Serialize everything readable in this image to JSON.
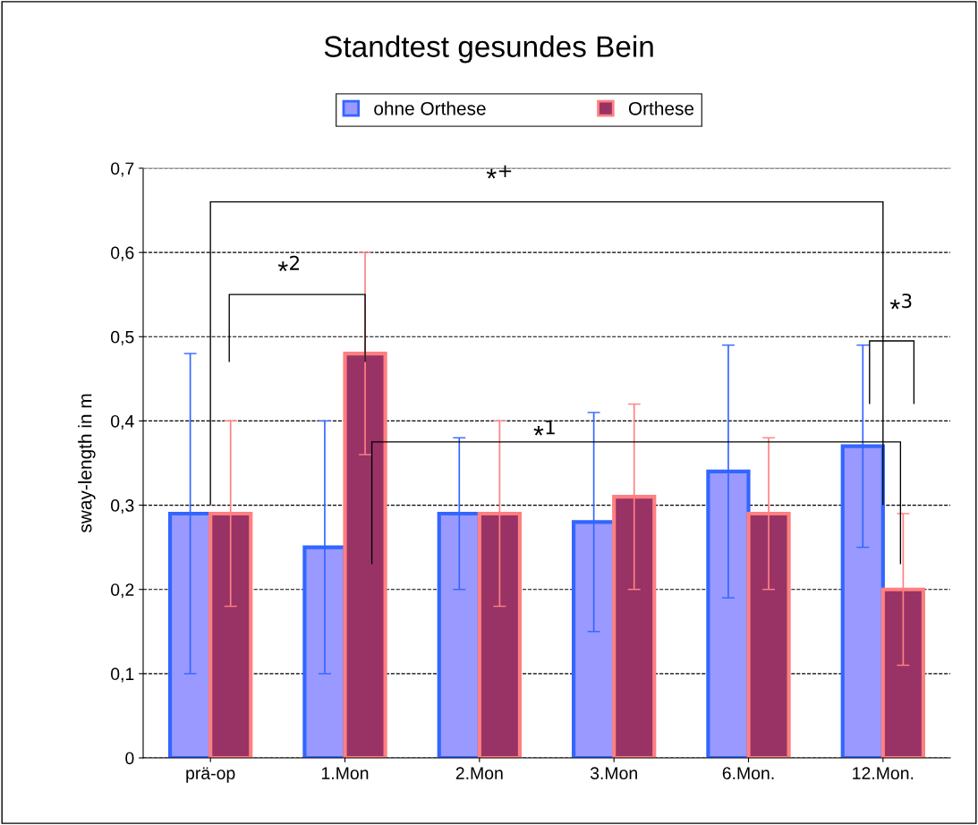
{
  "chart_data": {
    "type": "bar",
    "title": "Standtest gesundes Bein",
    "ylabel": "sway-length in m",
    "categories": [
      "prä-op",
      "1.Mon",
      "2.Mon",
      "3.Mon",
      "6.Mon.",
      "12.Mon."
    ],
    "series": [
      {
        "name": "ohne Orthese",
        "color": "#9999ff",
        "values": [
          0.29,
          0.25,
          0.29,
          0.28,
          0.34,
          0.37
        ],
        "errors": [
          0.19,
          0.15,
          0.09,
          0.13,
          0.15,
          0.12
        ]
      },
      {
        "name": "Orthese",
        "color": "#993366",
        "values": [
          0.29,
          0.48,
          0.29,
          0.31,
          0.29,
          0.2
        ],
        "errors": [
          0.11,
          0.12,
          0.11,
          0.11,
          0.09,
          0.09
        ]
      }
    ],
    "ylim": [
      0,
      0.7
    ],
    "yticks": [
      {
        "value": 0,
        "label": "0"
      },
      {
        "value": 0.1,
        "label": "0,1"
      },
      {
        "value": 0.2,
        "label": "0,2"
      },
      {
        "value": 0.3,
        "label": "0,3"
      },
      {
        "value": 0.4,
        "label": "0,4"
      },
      {
        "value": 0.5,
        "label": "0,5"
      },
      {
        "value": 0.6,
        "label": "0,6"
      },
      {
        "value": 0.7,
        "label": "0,7"
      }
    ],
    "grid": "y",
    "legend": "top",
    "annotations": [
      "*$^{+}$",
      "*$^{2}$",
      "*$^{1}$",
      "*$^{3}$"
    ]
  }
}
